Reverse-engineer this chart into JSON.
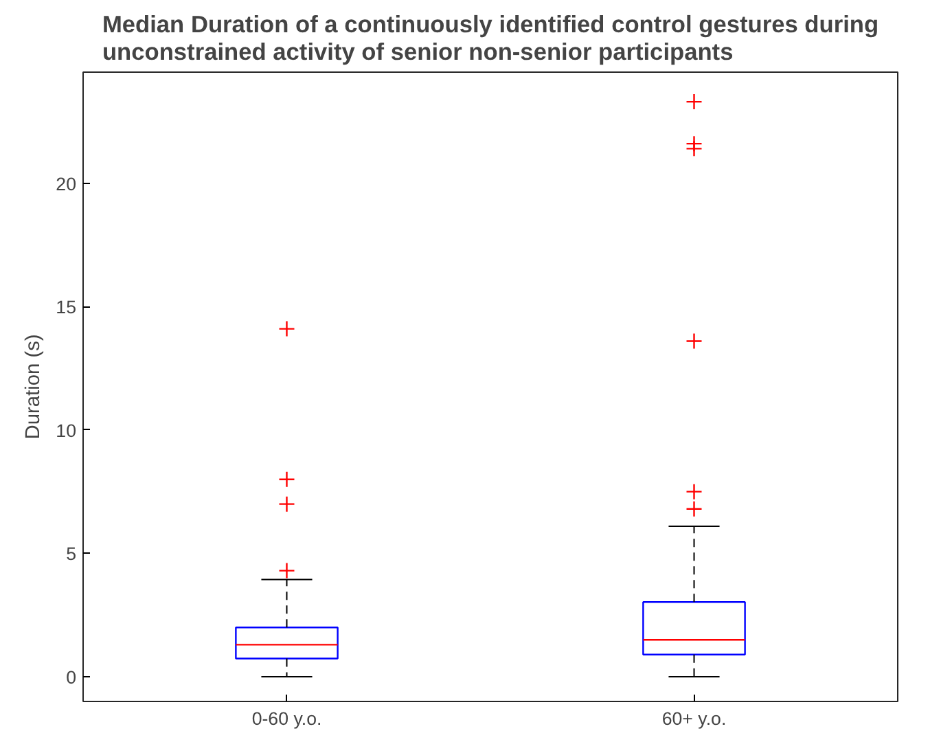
{
  "chart_data": {
    "type": "box",
    "title": "Median Duration of a continuously identified control gestures during\nunconstrained activity of senior non-senior participants",
    "ylabel": "Duration (s)",
    "categories": [
      "0-60 y.o.",
      "60+ y.o."
    ],
    "boxes": [
      {
        "low": 0,
        "q1": 0.74,
        "median": 1.3,
        "q3": 2.0,
        "high": 3.94,
        "outliers": [
          4.3,
          7.0,
          8.0,
          14.1
        ]
      },
      {
        "low": 0,
        "q1": 0.9,
        "median": 1.5,
        "q3": 3.03,
        "high": 6.1,
        "outliers": [
          6.8,
          7.5,
          13.6,
          21.4,
          21.6,
          23.3
        ]
      }
    ],
    "ylim": [
      -1,
      24.5
    ],
    "yticks": [
      0,
      5,
      10,
      15,
      20
    ],
    "grid": false,
    "marker": "cross"
  }
}
